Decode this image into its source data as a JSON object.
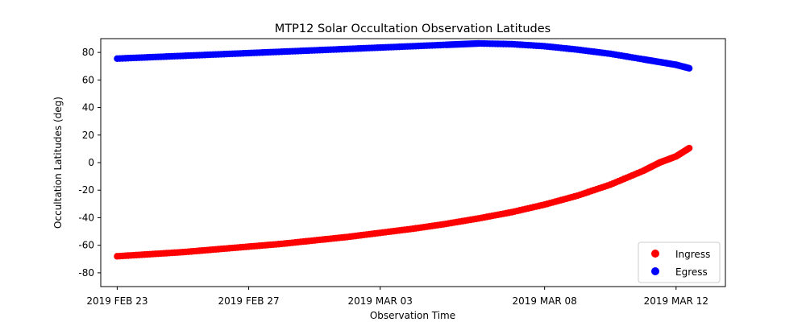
{
  "chart_data": {
    "type": "scatter",
    "title": "MTP12 Solar Occultation Observation Latitudes",
    "xlabel": "Observation Time",
    "ylabel": "Occultation Latitudes (deg)",
    "xlim": [
      -0.5,
      18.5
    ],
    "ylim": [
      -90,
      90
    ],
    "x_ticks": [
      {
        "value": 0,
        "label": "2019 FEB 23"
      },
      {
        "value": 4,
        "label": "2019 FEB 27"
      },
      {
        "value": 8,
        "label": "2019 MAR 03"
      },
      {
        "value": 13,
        "label": "2019 MAR 08"
      },
      {
        "value": 17,
        "label": "2019 MAR 12"
      }
    ],
    "y_ticks": [
      -80,
      -60,
      -40,
      -20,
      0,
      20,
      40,
      60,
      80
    ],
    "legend_position": "lower-right",
    "series": [
      {
        "name": "Ingress",
        "color": "#ff0000",
        "x": [
          0,
          1,
          2,
          3,
          4,
          5,
          6,
          7,
          8,
          9,
          10,
          11,
          12,
          13,
          14,
          15,
          16,
          16.5,
          17,
          17.4
        ],
        "y": [
          -68,
          -66.5,
          -65,
          -63,
          -61,
          -59,
          -56.5,
          -54,
          -51,
          -48,
          -44.5,
          -40.5,
          -36,
          -30.5,
          -24,
          -16,
          -6,
          0,
          4.5,
          10.5
        ]
      },
      {
        "name": "Egress",
        "color": "#0000ff",
        "x": [
          0,
          1,
          2,
          3,
          4,
          5,
          6,
          7,
          8,
          9,
          10,
          10.5,
          11,
          12,
          13,
          14,
          15,
          16,
          16.5,
          17,
          17.4
        ],
        "y": [
          75.5,
          76.5,
          77.5,
          78.5,
          79.5,
          80.5,
          81.5,
          82.5,
          83.5,
          84.5,
          85.5,
          86,
          86.5,
          86,
          84.5,
          82,
          79,
          75,
          73,
          71,
          68.5
        ]
      }
    ]
  }
}
